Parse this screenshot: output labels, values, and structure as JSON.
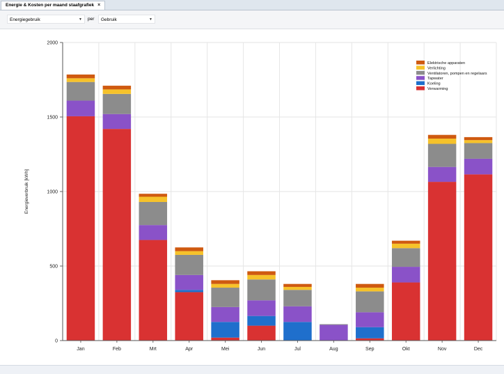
{
  "tab": {
    "title": "Energie & Kosten per maand staafgrafiek"
  },
  "toolbar": {
    "metric_value": "Energiegebruik",
    "per_label": "per",
    "group_value": "Gebruik"
  },
  "colors": {
    "Elektrische apparaten": "#cf5a10",
    "Verlichting": "#f6c22a",
    "Ventilatoren, pompen en regelaars": "#8c8c8c",
    "Tapwater": "#8a52c8",
    "Koeling": "#1f6fcc",
    "Verwarming": "#d93232"
  },
  "chart_data": {
    "type": "bar",
    "stacked": true,
    "ylabel": "Energieverbruik [kWh]",
    "xlabel": "",
    "ylim": [
      0,
      2000
    ],
    "yticks": [
      0,
      500,
      1000,
      1500,
      2000
    ],
    "grid": true,
    "legend_position": "top-right",
    "categories": [
      "Jan",
      "Feb",
      "Mrt",
      "Apr",
      "Mei",
      "Jun",
      "Jul",
      "Aug",
      "Sep",
      "Okt",
      "Nov",
      "Dec"
    ],
    "series": [
      {
        "name": "Verwarming",
        "values": [
          1505,
          1420,
          675,
          325,
          20,
          100,
          0,
          0,
          15,
          390,
          1065,
          1115
        ]
      },
      {
        "name": "Koeling",
        "values": [
          0,
          0,
          0,
          15,
          105,
          65,
          125,
          0,
          75,
          0,
          0,
          0
        ]
      },
      {
        "name": "Tapwater",
        "values": [
          105,
          100,
          100,
          100,
          100,
          105,
          105,
          105,
          100,
          105,
          100,
          105
        ]
      },
      {
        "name": "Ventilatoren, pompen en regelaars",
        "values": [
          125,
          135,
          155,
          135,
          130,
          140,
          110,
          5,
          140,
          125,
          155,
          105
        ]
      },
      {
        "name": "Verlichting",
        "values": [
          25,
          30,
          35,
          25,
          25,
          30,
          20,
          0,
          25,
          30,
          35,
          20
        ]
      },
      {
        "name": "Elektrische apparaten",
        "values": [
          25,
          25,
          20,
          25,
          25,
          25,
          20,
          0,
          25,
          20,
          25,
          20
        ]
      }
    ],
    "legend_order": [
      "Elektrische apparaten",
      "Verlichting",
      "Ventilatoren, pompen en regelaars",
      "Tapwater",
      "Koeling",
      "Verwarming"
    ]
  }
}
